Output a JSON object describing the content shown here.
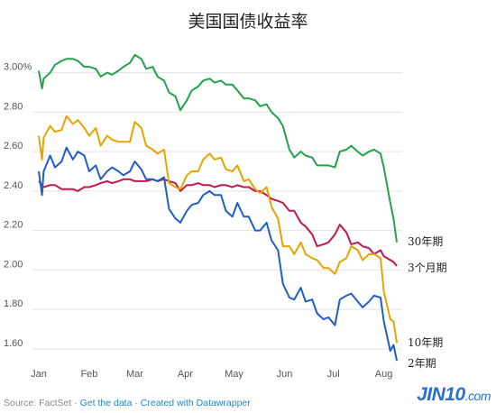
{
  "chart_data": {
    "type": "line",
    "title": "美国国债收益率",
    "ylim": [
      1.54,
      3.14
    ],
    "yticks": [
      "3.00%",
      "2.80",
      "2.60",
      "2.40",
      "2.20",
      "2.00",
      "1.80",
      "1.60"
    ],
    "ytick_values": [
      3.0,
      2.8,
      2.6,
      2.4,
      2.2,
      2.0,
      1.8,
      1.6
    ],
    "xticks": [
      "Jan",
      "Feb",
      "Mar",
      "Apr",
      "May",
      "Jun",
      "Jul",
      "Aug"
    ],
    "xtick_dates": [
      "2019-01-01",
      "2019-02-01",
      "2019-03-01",
      "2019-04-01",
      "2019-05-01",
      "2019-06-01",
      "2019-07-01",
      "2019-08-01"
    ],
    "grid": true,
    "series": [
      {
        "name": "30年期",
        "color": "#21a34a",
        "points": [
          [
            "2019-01-01",
            3.01
          ],
          [
            "2019-01-03",
            2.92
          ],
          [
            "2019-01-04",
            2.97
          ],
          [
            "2019-01-08",
            3.0
          ],
          [
            "2019-01-11",
            3.04
          ],
          [
            "2019-01-15",
            3.06
          ],
          [
            "2019-01-18",
            3.07
          ],
          [
            "2019-01-22",
            3.07
          ],
          [
            "2019-01-25",
            3.06
          ],
          [
            "2019-01-29",
            3.03
          ],
          [
            "2019-02-01",
            3.03
          ],
          [
            "2019-02-05",
            3.02
          ],
          [
            "2019-02-08",
            2.98
          ],
          [
            "2019-02-12",
            3.0
          ],
          [
            "2019-02-15",
            2.99
          ],
          [
            "2019-02-19",
            3.01
          ],
          [
            "2019-02-22",
            3.03
          ],
          [
            "2019-02-26",
            3.05
          ],
          [
            "2019-03-01",
            3.09
          ],
          [
            "2019-03-05",
            3.07
          ],
          [
            "2019-03-08",
            3.02
          ],
          [
            "2019-03-12",
            3.03
          ],
          [
            "2019-03-15",
            2.98
          ],
          [
            "2019-03-19",
            2.96
          ],
          [
            "2019-03-22",
            2.9
          ],
          [
            "2019-03-26",
            2.88
          ],
          [
            "2019-03-29",
            2.81
          ],
          [
            "2019-04-02",
            2.86
          ],
          [
            "2019-04-05",
            2.91
          ],
          [
            "2019-04-09",
            2.93
          ],
          [
            "2019-04-12",
            2.96
          ],
          [
            "2019-04-16",
            2.97
          ],
          [
            "2019-04-19",
            2.95
          ],
          [
            "2019-04-23",
            2.96
          ],
          [
            "2019-04-26",
            2.94
          ],
          [
            "2019-04-30",
            2.94
          ],
          [
            "2019-05-03",
            2.91
          ],
          [
            "2019-05-07",
            2.87
          ],
          [
            "2019-05-10",
            2.87
          ],
          [
            "2019-05-14",
            2.86
          ],
          [
            "2019-05-17",
            2.83
          ],
          [
            "2019-05-21",
            2.84
          ],
          [
            "2019-05-24",
            2.8
          ],
          [
            "2019-05-28",
            2.77
          ],
          [
            "2019-05-31",
            2.73
          ],
          [
            "2019-06-04",
            2.61
          ],
          [
            "2019-06-07",
            2.57
          ],
          [
            "2019-06-11",
            2.6
          ],
          [
            "2019-06-14",
            2.58
          ],
          [
            "2019-06-18",
            2.57
          ],
          [
            "2019-06-21",
            2.53
          ],
          [
            "2019-06-25",
            2.53
          ],
          [
            "2019-06-28",
            2.53
          ],
          [
            "2019-07-02",
            2.52
          ],
          [
            "2019-07-05",
            2.6
          ],
          [
            "2019-07-09",
            2.61
          ],
          [
            "2019-07-12",
            2.63
          ],
          [
            "2019-07-16",
            2.6
          ],
          [
            "2019-07-19",
            2.58
          ],
          [
            "2019-07-23",
            2.6
          ],
          [
            "2019-07-26",
            2.61
          ],
          [
            "2019-07-30",
            2.59
          ],
          [
            "2019-08-01",
            2.52
          ],
          [
            "2019-08-05",
            2.34
          ],
          [
            "2019-08-07",
            2.26
          ],
          [
            "2019-08-09",
            2.14
          ]
        ],
        "end_label": "30年期"
      },
      {
        "name": "3个月期",
        "color": "#c0174f",
        "points": [
          [
            "2019-01-01",
            2.45
          ],
          [
            "2019-01-04",
            2.42
          ],
          [
            "2019-01-08",
            2.43
          ],
          [
            "2019-01-11",
            2.43
          ],
          [
            "2019-01-15",
            2.41
          ],
          [
            "2019-01-18",
            2.41
          ],
          [
            "2019-01-22",
            2.41
          ],
          [
            "2019-01-25",
            2.4
          ],
          [
            "2019-01-29",
            2.42
          ],
          [
            "2019-02-01",
            2.42
          ],
          [
            "2019-02-05",
            2.43
          ],
          [
            "2019-02-08",
            2.44
          ],
          [
            "2019-02-12",
            2.45
          ],
          [
            "2019-02-15",
            2.44
          ],
          [
            "2019-02-19",
            2.45
          ],
          [
            "2019-02-22",
            2.46
          ],
          [
            "2019-02-26",
            2.46
          ],
          [
            "2019-03-01",
            2.45
          ],
          [
            "2019-03-05",
            2.45
          ],
          [
            "2019-03-08",
            2.45
          ],
          [
            "2019-03-12",
            2.46
          ],
          [
            "2019-03-15",
            2.45
          ],
          [
            "2019-03-19",
            2.46
          ],
          [
            "2019-03-22",
            2.45
          ],
          [
            "2019-03-26",
            2.44
          ],
          [
            "2019-03-29",
            2.4
          ],
          [
            "2019-04-02",
            2.43
          ],
          [
            "2019-04-05",
            2.43
          ],
          [
            "2019-04-09",
            2.44
          ],
          [
            "2019-04-12",
            2.43
          ],
          [
            "2019-04-16",
            2.43
          ],
          [
            "2019-04-19",
            2.42
          ],
          [
            "2019-04-23",
            2.43
          ],
          [
            "2019-04-26",
            2.43
          ],
          [
            "2019-04-30",
            2.42
          ],
          [
            "2019-05-03",
            2.43
          ],
          [
            "2019-05-07",
            2.42
          ],
          [
            "2019-05-10",
            2.42
          ],
          [
            "2019-05-14",
            2.4
          ],
          [
            "2019-05-17",
            2.4
          ],
          [
            "2019-05-21",
            2.38
          ],
          [
            "2019-05-24",
            2.36
          ],
          [
            "2019-05-28",
            2.35
          ],
          [
            "2019-05-31",
            2.34
          ],
          [
            "2019-06-04",
            2.3
          ],
          [
            "2019-06-07",
            2.3
          ],
          [
            "2019-06-11",
            2.24
          ],
          [
            "2019-06-14",
            2.22
          ],
          [
            "2019-06-18",
            2.18
          ],
          [
            "2019-06-21",
            2.12
          ],
          [
            "2019-06-25",
            2.13
          ],
          [
            "2019-06-28",
            2.14
          ],
          [
            "2019-07-02",
            2.18
          ],
          [
            "2019-07-05",
            2.23
          ],
          [
            "2019-07-09",
            2.19
          ],
          [
            "2019-07-12",
            2.13
          ],
          [
            "2019-07-16",
            2.14
          ],
          [
            "2019-07-19",
            2.12
          ],
          [
            "2019-07-23",
            2.11
          ],
          [
            "2019-07-26",
            2.08
          ],
          [
            "2019-07-30",
            2.1
          ],
          [
            "2019-08-01",
            2.07
          ],
          [
            "2019-08-05",
            2.05
          ],
          [
            "2019-08-07",
            2.04
          ],
          [
            "2019-08-09",
            2.02
          ]
        ],
        "end_label": "3个月期"
      },
      {
        "name": "10年期",
        "color": "#e8a300",
        "points": [
          [
            "2019-01-01",
            2.68
          ],
          [
            "2019-01-03",
            2.56
          ],
          [
            "2019-01-04",
            2.67
          ],
          [
            "2019-01-08",
            2.73
          ],
          [
            "2019-01-11",
            2.7
          ],
          [
            "2019-01-15",
            2.71
          ],
          [
            "2019-01-18",
            2.78
          ],
          [
            "2019-01-22",
            2.74
          ],
          [
            "2019-01-25",
            2.76
          ],
          [
            "2019-01-29",
            2.72
          ],
          [
            "2019-02-01",
            2.68
          ],
          [
            "2019-02-05",
            2.72
          ],
          [
            "2019-02-08",
            2.63
          ],
          [
            "2019-02-12",
            2.68
          ],
          [
            "2019-02-15",
            2.66
          ],
          [
            "2019-02-19",
            2.65
          ],
          [
            "2019-02-22",
            2.65
          ],
          [
            "2019-02-26",
            2.65
          ],
          [
            "2019-03-01",
            2.75
          ],
          [
            "2019-03-05",
            2.72
          ],
          [
            "2019-03-08",
            2.63
          ],
          [
            "2019-03-12",
            2.61
          ],
          [
            "2019-03-15",
            2.59
          ],
          [
            "2019-03-19",
            2.61
          ],
          [
            "2019-03-22",
            2.44
          ],
          [
            "2019-03-26",
            2.42
          ],
          [
            "2019-03-29",
            2.41
          ],
          [
            "2019-04-02",
            2.48
          ],
          [
            "2019-04-05",
            2.5
          ],
          [
            "2019-04-09",
            2.5
          ],
          [
            "2019-04-12",
            2.56
          ],
          [
            "2019-04-16",
            2.59
          ],
          [
            "2019-04-19",
            2.56
          ],
          [
            "2019-04-23",
            2.57
          ],
          [
            "2019-04-26",
            2.51
          ],
          [
            "2019-04-30",
            2.5
          ],
          [
            "2019-05-03",
            2.53
          ],
          [
            "2019-05-07",
            2.45
          ],
          [
            "2019-05-10",
            2.46
          ],
          [
            "2019-05-14",
            2.41
          ],
          [
            "2019-05-17",
            2.39
          ],
          [
            "2019-05-21",
            2.42
          ],
          [
            "2019-05-24",
            2.32
          ],
          [
            "2019-05-28",
            2.26
          ],
          [
            "2019-05-31",
            2.12
          ],
          [
            "2019-06-04",
            2.12
          ],
          [
            "2019-06-07",
            2.08
          ],
          [
            "2019-06-11",
            2.14
          ],
          [
            "2019-06-14",
            2.08
          ],
          [
            "2019-06-18",
            2.06
          ],
          [
            "2019-06-21",
            2.05
          ],
          [
            "2019-06-25",
            2.01
          ],
          [
            "2019-06-28",
            2.01
          ],
          [
            "2019-07-02",
            1.98
          ],
          [
            "2019-07-05",
            2.04
          ],
          [
            "2019-07-09",
            2.06
          ],
          [
            "2019-07-12",
            2.12
          ],
          [
            "2019-07-16",
            2.1
          ],
          [
            "2019-07-19",
            2.05
          ],
          [
            "2019-07-23",
            2.08
          ],
          [
            "2019-07-26",
            2.08
          ],
          [
            "2019-07-30",
            2.06
          ],
          [
            "2019-08-01",
            1.89
          ],
          [
            "2019-08-05",
            1.75
          ],
          [
            "2019-08-07",
            1.74
          ],
          [
            "2019-08-09",
            1.63
          ]
        ],
        "end_label": "10年期"
      },
      {
        "name": "2年期",
        "color": "#1f5dc8",
        "points": [
          [
            "2019-01-01",
            2.5
          ],
          [
            "2019-01-03",
            2.38
          ],
          [
            "2019-01-04",
            2.5
          ],
          [
            "2019-01-08",
            2.58
          ],
          [
            "2019-01-11",
            2.52
          ],
          [
            "2019-01-15",
            2.55
          ],
          [
            "2019-01-18",
            2.62
          ],
          [
            "2019-01-22",
            2.56
          ],
          [
            "2019-01-25",
            2.6
          ],
          [
            "2019-01-29",
            2.58
          ],
          [
            "2019-02-01",
            2.5
          ],
          [
            "2019-02-05",
            2.53
          ],
          [
            "2019-02-08",
            2.46
          ],
          [
            "2019-02-12",
            2.5
          ],
          [
            "2019-02-15",
            2.52
          ],
          [
            "2019-02-19",
            2.5
          ],
          [
            "2019-02-22",
            2.48
          ],
          [
            "2019-02-26",
            2.5
          ],
          [
            "2019-03-01",
            2.55
          ],
          [
            "2019-03-05",
            2.51
          ],
          [
            "2019-03-08",
            2.46
          ],
          [
            "2019-03-12",
            2.46
          ],
          [
            "2019-03-15",
            2.45
          ],
          [
            "2019-03-19",
            2.47
          ],
          [
            "2019-03-22",
            2.31
          ],
          [
            "2019-03-26",
            2.26
          ],
          [
            "2019-03-29",
            2.24
          ],
          [
            "2019-04-02",
            2.3
          ],
          [
            "2019-04-05",
            2.33
          ],
          [
            "2019-04-09",
            2.34
          ],
          [
            "2019-04-12",
            2.38
          ],
          [
            "2019-04-16",
            2.4
          ],
          [
            "2019-04-19",
            2.38
          ],
          [
            "2019-04-23",
            2.38
          ],
          [
            "2019-04-26",
            2.3
          ],
          [
            "2019-04-30",
            2.27
          ],
          [
            "2019-05-03",
            2.34
          ],
          [
            "2019-05-07",
            2.27
          ],
          [
            "2019-05-10",
            2.27
          ],
          [
            "2019-05-14",
            2.2
          ],
          [
            "2019-05-17",
            2.2
          ],
          [
            "2019-05-21",
            2.24
          ],
          [
            "2019-05-24",
            2.15
          ],
          [
            "2019-05-28",
            2.1
          ],
          [
            "2019-05-31",
            1.93
          ],
          [
            "2019-06-04",
            1.86
          ],
          [
            "2019-06-07",
            1.85
          ],
          [
            "2019-06-11",
            1.91
          ],
          [
            "2019-06-14",
            1.84
          ],
          [
            "2019-06-18",
            1.85
          ],
          [
            "2019-06-21",
            1.78
          ],
          [
            "2019-06-25",
            1.75
          ],
          [
            "2019-06-28",
            1.76
          ],
          [
            "2019-07-02",
            1.72
          ],
          [
            "2019-07-05",
            1.85
          ],
          [
            "2019-07-09",
            1.87
          ],
          [
            "2019-07-12",
            1.88
          ],
          [
            "2019-07-16",
            1.84
          ],
          [
            "2019-07-19",
            1.81
          ],
          [
            "2019-07-23",
            1.84
          ],
          [
            "2019-07-26",
            1.87
          ],
          [
            "2019-07-30",
            1.86
          ],
          [
            "2019-08-01",
            1.74
          ],
          [
            "2019-08-05",
            1.59
          ],
          [
            "2019-08-07",
            1.62
          ],
          [
            "2019-08-09",
            1.54
          ]
        ],
        "end_label": "2年期"
      }
    ]
  },
  "footer": {
    "source": "Source: FactSet",
    "sep1": " · ",
    "get_data": "Get the data",
    "sep2": " · ",
    "created_with": "Created with Datawrapper"
  },
  "watermark": {
    "logo_text": "JIN10",
    "logo_suffix": ".com"
  }
}
